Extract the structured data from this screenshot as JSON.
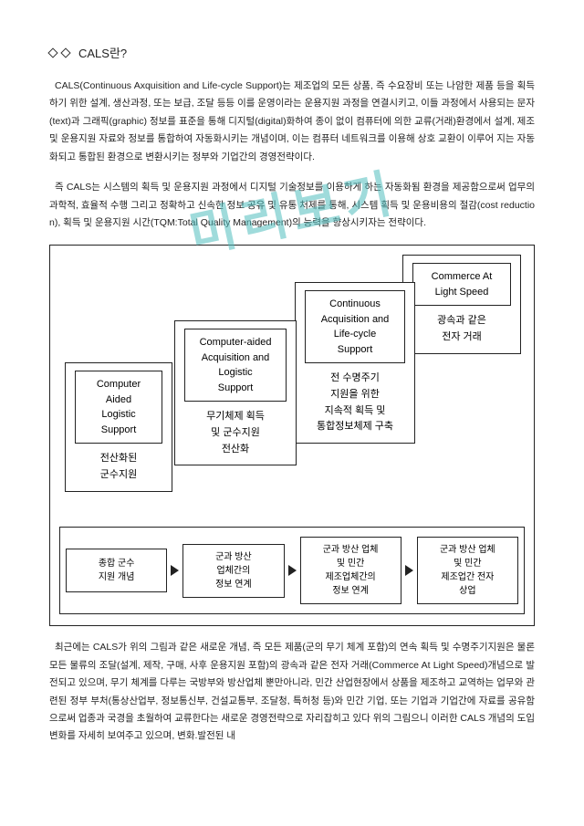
{
  "watermark": "미리보기",
  "title": "CALS란?",
  "para1": "CALS(Continuous Axquisition and Life-cycle Support)는 제조업의 모든 상품, 즉 수요장비 또는 나암한 제품 등을 획득하기 위한 설계, 생산과정, 또는 보급, 조달 등등 이를 운영이라는 운용지원 과정을 연결시키고, 이들 과정에서 사용되는 문자(text)과 그래픽(graphic) 정보를 표준을 통해 디지털(digital)화하여 종이 없이 컴퓨터에 의한 교류(거래)환경에서 설계, 제조 및 운용지원 자료와 정보를 통합하여 자동화시키는 개념이며, 이는 컴퓨터 네트워크를 이용해 상호 교환이 이루어 지는 자동화되고 통합된 환경으로 변환시키는 정부와 기업간의 경영전략이다.",
  "para2": "즉 CALS는 시스템의 획득 및 운용지원 과정에서 디지털 기술정보를 이용하게 하는 자동화됨 환경을 제공함으로써 업무의 과학적, 효율적 수행 그리고 정확하고 신속한 정보 공유 및 유통 처제를 통해, 시스템 획득 및 운용비용의 절감(cost reduction), 획득 및 운용지원 시간(TQM:Total Quality Management)의 능력을 향상시키자는 전략이다.",
  "stairs": [
    {
      "title_lines": [
        "Computer",
        "Aided",
        "Logistic",
        "Support"
      ],
      "body_lines": [
        "전산화된",
        "군수지원"
      ]
    },
    {
      "title_lines": [
        "Computer-aided",
        "Acquisition and",
        "Logistic",
        "Support"
      ],
      "body_lines": [
        "무기체제 획득",
        "및 군수지원",
        "전산화"
      ]
    },
    {
      "title_lines": [
        "Continuous",
        "Acquisition and",
        "Life-cycle",
        "Support"
      ],
      "body_lines": [
        "전 수명주기",
        "지원을 위한",
        "지속적 획득 및",
        "통합정보체제 구축"
      ]
    },
    {
      "title_lines": [
        "Commerce At",
        "Light Speed"
      ],
      "body_lines": [
        "광속과 같은",
        "전자 거래"
      ]
    }
  ],
  "bottom": [
    "종합 군수\n지원 개념",
    "군과 방산\n업체간의\n정보 연계",
    "군과 방산 업체\n및 민간\n제조업체간의\n정보 연계",
    "군과 방산 업체\n및 민간\n제조업간 전자\n상업"
  ],
  "para3": "최근에는 CALS가 위의 그림과 같은 새로운 개념, 즉 모든 제품(군의 무기 체계 포함)의 연속 획득 및 수명주기지원은 물론 모든 물류의 조달(설계, 제작, 구매, 사후 운용지원 포함)의 광속과 같은 전자 거래(Commerce At Light Speed)개념으로 발전되고 있으며, 무기 체계를 다루는 국방부와 방산업체 뿐만아니라, 민간 산업현장에서 상품을 제조하고 교역하는 업무와 관련된 정부 부처(통상산업부, 정보통신부, 건설교통부, 조달청, 특허청 등)와 민간 기업, 또는 기업과 기업간에 자료를 공유함으로써 업종과 국경을 초월하여 교류한다는 새로운 경영전략으로 자리잡히고 있다 위의 그림으니 이러한 CALS 개념의 도입 변화를 자세히 보여주고 있으며, 변화.발전된 내"
}
